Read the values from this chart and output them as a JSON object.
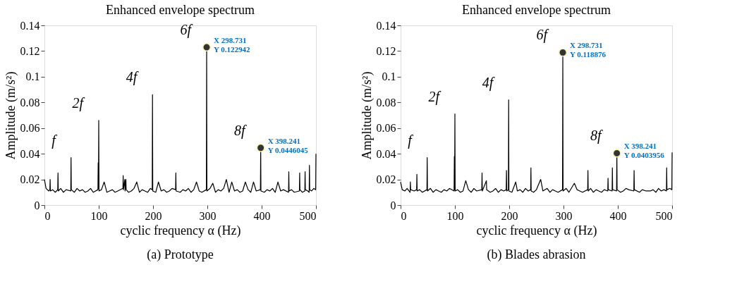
{
  "chart_data": [
    {
      "type": "line",
      "title": "Enhanced envelope spectrum",
      "xlabel": "cyclic frequency α (Hz)",
      "ylabel": "Amplitude (m/s²)",
      "xlim": [
        0,
        500
      ],
      "xticks": [
        0,
        100,
        200,
        300,
        400,
        500
      ],
      "ylim": [
        0,
        0.14
      ],
      "yticks": [
        0,
        0.02,
        0.04,
        0.06,
        0.08,
        0.1,
        0.12,
        0.14
      ],
      "grid": false,
      "series": [
        {
          "type": "line",
          "color": "#000000",
          "x": [
            0,
            3,
            8,
            10,
            10.5,
            11,
            15,
            20,
            24.5,
            25,
            25.5,
            30,
            35,
            40,
            48.5,
            49,
            49.5,
            55,
            60,
            65,
            70,
            75,
            80,
            85,
            90,
            98.5,
            99,
            99.5,
            100,
            100.5,
            105,
            110,
            115,
            120,
            125,
            130,
            135,
            144.5,
            145,
            145.5,
            148,
            148.5,
            150,
            150.5,
            155,
            160,
            165,
            170,
            175,
            180,
            185,
            190,
            195,
            198.5,
            199,
            199.5,
            205,
            210,
            215,
            220,
            225,
            230,
            235,
            241.5,
            242,
            242.5,
            250,
            255,
            260,
            265,
            270,
            275,
            280,
            285,
            290,
            298.2,
            298.731,
            299.2,
            305,
            310,
            315,
            320,
            325,
            330,
            335,
            340,
            345,
            350,
            355,
            360,
            365,
            370,
            375,
            380,
            385,
            390,
            397.7,
            398.241,
            398.7,
            405,
            410,
            415,
            420,
            425,
            430,
            435,
            440,
            449.5,
            450,
            450.5,
            455,
            460,
            469.5,
            470,
            470.5,
            475,
            479.5,
            480,
            480.5,
            485,
            487.5,
            488,
            488.5,
            492,
            496,
            499.5,
            500
          ],
          "values": [
            0.02,
            0.013,
            0.011,
            0.012,
            0.02,
            0.011,
            0.012,
            0.01,
            0.012,
            0.025,
            0.011,
            0.013,
            0.01,
            0.012,
            0.011,
            0.037,
            0.012,
            0.01,
            0.013,
            0.011,
            0.012,
            0.01,
            0.011,
            0.013,
            0.01,
            0.012,
            0.033,
            0.013,
            0.066,
            0.011,
            0.012,
            0.018,
            0.01,
            0.011,
            0.012,
            0.01,
            0.011,
            0.013,
            0.023,
            0.012,
            0.02,
            0.011,
            0.02,
            0.012,
            0.01,
            0.011,
            0.013,
            0.018,
            0.01,
            0.012,
            0.011,
            0.01,
            0.013,
            0.012,
            0.086,
            0.011,
            0.01,
            0.018,
            0.011,
            0.012,
            0.01,
            0.011,
            0.013,
            0.012,
            0.025,
            0.011,
            0.01,
            0.012,
            0.011,
            0.013,
            0.01,
            0.012,
            0.018,
            0.011,
            0.01,
            0.012,
            0.122942,
            0.011,
            0.013,
            0.017,
            0.01,
            0.012,
            0.011,
            0.013,
            0.02,
            0.01,
            0.018,
            0.011,
            0.012,
            0.01,
            0.011,
            0.018,
            0.012,
            0.01,
            0.018,
            0.011,
            0.012,
            0.0446045,
            0.011,
            0.01,
            0.012,
            0.011,
            0.013,
            0.01,
            0.018,
            0.011,
            0.012,
            0.01,
            0.026,
            0.011,
            0.012,
            0.01,
            0.011,
            0.025,
            0.012,
            0.01,
            0.011,
            0.026,
            0.012,
            0.011,
            0.01,
            0.031,
            0.012,
            0.011,
            0.013,
            0.012,
            0.04
          ]
        },
        {
          "type": "scatter",
          "color": "#333333",
          "marker": "circle",
          "x": [
            298.731,
            398.241
          ],
          "values": [
            0.122942,
            0.0446045
          ],
          "value_labels": [
            "X 298.731\nY 0.122942",
            "X 398.241\nY 0.0446045"
          ]
        }
      ],
      "annotations": [
        {
          "text": "f",
          "x": 49,
          "y": 0.037
        },
        {
          "text": "2f",
          "x": 100,
          "y": 0.066
        },
        {
          "text": "4f",
          "x": 199,
          "y": 0.086
        },
        {
          "text": "6f",
          "x": 298.731,
          "y": 0.122942
        },
        {
          "text": "8f",
          "x": 398.241,
          "y": 0.0446045
        },
        "(a) Prototype"
      ]
    },
    {
      "type": "line",
      "title": "Enhanced envelope spectrum",
      "xlabel": "cyclic frequency α (Hz)",
      "ylabel": "Amplitude (m/s²)",
      "xlim": [
        0,
        500
      ],
      "xticks": [
        0,
        100,
        200,
        300,
        400,
        500
      ],
      "ylim": [
        0,
        0.14
      ],
      "yticks": [
        0,
        0.02,
        0.04,
        0.06,
        0.08,
        0.1,
        0.12,
        0.14
      ],
      "grid": false,
      "series": [
        {
          "type": "line",
          "color": "#000000",
          "x": [
            0,
            3,
            8,
            12,
            17.5,
            18,
            18.5,
            25,
            29.5,
            30,
            30.5,
            35,
            40,
            48.5,
            49,
            49.5,
            55,
            60,
            65,
            70,
            75,
            80,
            85,
            90,
            98.5,
            99,
            99.5,
            100,
            100.5,
            105,
            110,
            115,
            120,
            125,
            130,
            135,
            140,
            149.5,
            150,
            150.5,
            158,
            158.5,
            165,
            170,
            175,
            180,
            185,
            190,
            194.5,
            195,
            195.5,
            198.5,
            199,
            199.5,
            205,
            212,
            215,
            220,
            225,
            230,
            235,
            239.5,
            240,
            240.5,
            245,
            250,
            258,
            262,
            270,
            275,
            280,
            285,
            290,
            298.2,
            298.731,
            299.2,
            305,
            310,
            320,
            325,
            330,
            335,
            344.5,
            345,
            345.5,
            350,
            355,
            360,
            365,
            370,
            375,
            381.5,
            382,
            382.5,
            389.5,
            390,
            390.5,
            397.7,
            398.241,
            398.7,
            405,
            410,
            415,
            420,
            429.5,
            430,
            430.5,
            440,
            445,
            452,
            460,
            465,
            470,
            475,
            480,
            485,
            489.5,
            490,
            490.5,
            496,
            499.5,
            500
          ],
          "values": [
            0.018,
            0.012,
            0.011,
            0.013,
            0.01,
            0.018,
            0.012,
            0.011,
            0.012,
            0.024,
            0.011,
            0.012,
            0.01,
            0.012,
            0.037,
            0.011,
            0.013,
            0.01,
            0.012,
            0.011,
            0.01,
            0.012,
            0.011,
            0.013,
            0.011,
            0.038,
            0.012,
            0.071,
            0.011,
            0.012,
            0.01,
            0.011,
            0.019,
            0.012,
            0.01,
            0.013,
            0.011,
            0.012,
            0.025,
            0.011,
            0.019,
            0.012,
            0.01,
            0.011,
            0.013,
            0.01,
            0.012,
            0.011,
            0.012,
            0.027,
            0.011,
            0.012,
            0.082,
            0.011,
            0.01,
            0.018,
            0.011,
            0.012,
            0.01,
            0.013,
            0.011,
            0.012,
            0.029,
            0.011,
            0.01,
            0.012,
            0.02,
            0.011,
            0.013,
            0.01,
            0.012,
            0.011,
            0.01,
            0.012,
            0.118876,
            0.011,
            0.013,
            0.01,
            0.017,
            0.012,
            0.011,
            0.01,
            0.012,
            0.027,
            0.011,
            0.013,
            0.01,
            0.012,
            0.011,
            0.01,
            0.012,
            0.011,
            0.021,
            0.012,
            0.011,
            0.029,
            0.012,
            0.011,
            0.0403956,
            0.012,
            0.01,
            0.011,
            0.013,
            0.012,
            0.011,
            0.027,
            0.012,
            0.01,
            0.012,
            0.011,
            0.011,
            0.012,
            0.01,
            0.013,
            0.011,
            0.012,
            0.011,
            0.029,
            0.012,
            0.013,
            0.012,
            0.041
          ]
        },
        {
          "type": "scatter",
          "color": "#333333",
          "marker": "circle",
          "x": [
            298.731,
            398.241
          ],
          "values": [
            0.118876,
            0.0403956
          ],
          "value_labels": [
            "X 298.731\nY 0.118876",
            "X 398.241\nY 0.0403956"
          ]
        }
      ],
      "annotations": [
        {
          "text": "f",
          "x": 49,
          "y": 0.037
        },
        {
          "text": "2f",
          "x": 100,
          "y": 0.071
        },
        {
          "text": "4f",
          "x": 199,
          "y": 0.082
        },
        {
          "text": "6f",
          "x": 298.731,
          "y": 0.118876
        },
        {
          "text": "8f",
          "x": 398.241,
          "y": 0.0403956
        },
        "(b) Blades abrasion"
      ]
    }
  ]
}
